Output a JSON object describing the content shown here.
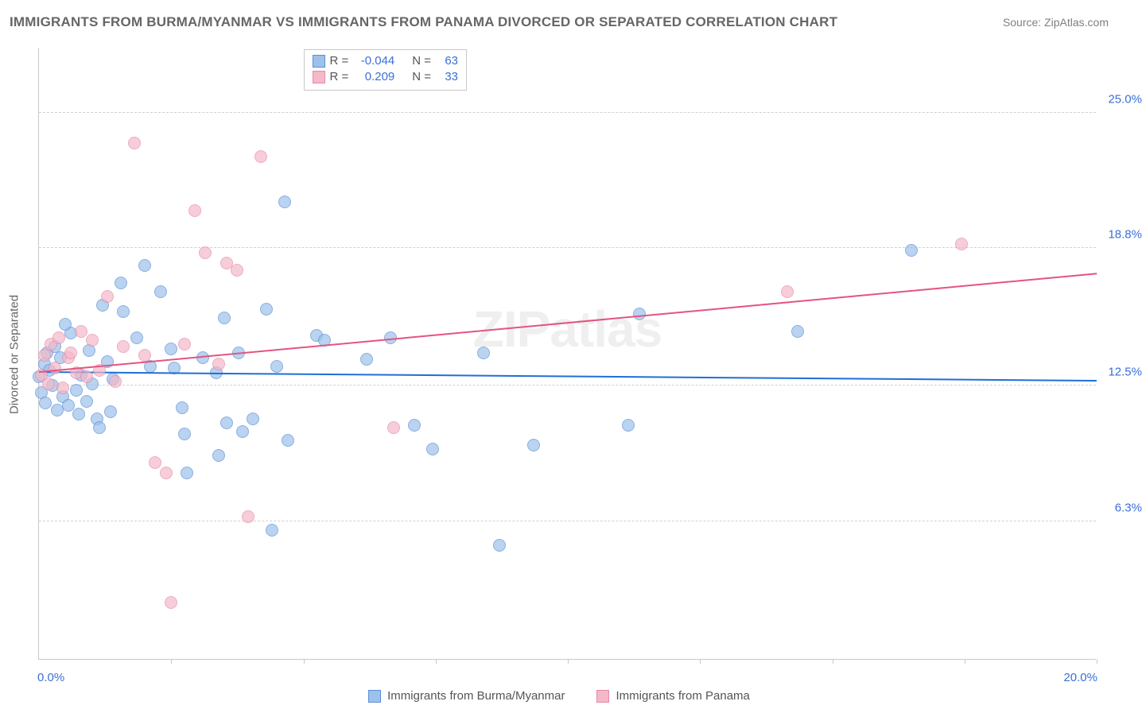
{
  "title": "IMMIGRANTS FROM BURMA/MYANMAR VS IMMIGRANTS FROM PANAMA DIVORCED OR SEPARATED CORRELATION CHART",
  "source_label": "Source: ",
  "source_name": "ZipAtlas.com",
  "y_axis_title": "Divorced or Separated",
  "watermark": "ZIPatlas",
  "chart": {
    "type": "scatter",
    "xlim": [
      0,
      20
    ],
    "ylim": [
      0,
      28
    ],
    "x_ticks": [
      2.5,
      5.0,
      7.5,
      10.0,
      12.5,
      15.0,
      17.5,
      20.0
    ],
    "y_gridlines": [
      6.3,
      12.5,
      18.8,
      25.0
    ],
    "y_tick_labels": [
      "6.3%",
      "12.5%",
      "18.8%",
      "25.0%"
    ],
    "x_origin_label": "0.0%",
    "x_max_label": "20.0%",
    "background_color": "#ffffff",
    "grid_color": "#d0d0d0",
    "axis_color": "#c8c8c8",
    "marker_radius": 8,
    "marker_fill_opacity": 0.35,
    "series": [
      {
        "key": "burma",
        "label": "Immigrants from Burma/Myanmar",
        "color_stroke": "#5a8fd6",
        "color_fill": "#9cc1eb",
        "trend_color": "#1f6fd6",
        "R": "-0.044",
        "N": "63",
        "trend": {
          "x0": 0,
          "y0": 13.1,
          "x1": 20,
          "y1": 12.7
        },
        "points": [
          [
            0.0,
            12.9
          ],
          [
            0.05,
            12.2
          ],
          [
            0.1,
            13.5
          ],
          [
            0.15,
            14.0
          ],
          [
            0.12,
            11.7
          ],
          [
            0.2,
            13.2
          ],
          [
            0.25,
            12.5
          ],
          [
            0.3,
            14.3
          ],
          [
            0.35,
            11.4
          ],
          [
            0.4,
            13.8
          ],
          [
            0.45,
            12.0
          ],
          [
            0.55,
            11.6
          ],
          [
            0.6,
            14.9
          ],
          [
            0.7,
            12.3
          ],
          [
            0.75,
            11.2
          ],
          [
            0.8,
            13.0
          ],
          [
            0.9,
            11.8
          ],
          [
            0.95,
            14.1
          ],
          [
            1.0,
            12.6
          ],
          [
            1.1,
            11.0
          ],
          [
            1.15,
            10.6
          ],
          [
            1.2,
            16.2
          ],
          [
            1.3,
            13.6
          ],
          [
            1.35,
            11.3
          ],
          [
            1.4,
            12.8
          ],
          [
            1.55,
            17.2
          ],
          [
            1.6,
            15.9
          ],
          [
            1.85,
            14.7
          ],
          [
            2.0,
            18.0
          ],
          [
            2.1,
            13.4
          ],
          [
            2.3,
            16.8
          ],
          [
            2.5,
            14.2
          ],
          [
            2.55,
            13.3
          ],
          [
            2.7,
            11.5
          ],
          [
            2.75,
            10.3
          ],
          [
            2.8,
            8.5
          ],
          [
            3.1,
            13.8
          ],
          [
            3.35,
            13.1
          ],
          [
            3.4,
            9.3
          ],
          [
            3.5,
            15.6
          ],
          [
            3.55,
            10.8
          ],
          [
            3.78,
            14.0
          ],
          [
            3.85,
            10.4
          ],
          [
            4.05,
            11.0
          ],
          [
            4.3,
            16.0
          ],
          [
            4.4,
            5.9
          ],
          [
            4.5,
            13.4
          ],
          [
            4.65,
            20.9
          ],
          [
            4.7,
            10.0
          ],
          [
            5.25,
            14.8
          ],
          [
            5.4,
            14.6
          ],
          [
            6.2,
            13.7
          ],
          [
            6.65,
            14.7
          ],
          [
            7.1,
            10.7
          ],
          [
            7.45,
            9.6
          ],
          [
            8.4,
            14.0
          ],
          [
            8.7,
            5.2
          ],
          [
            9.35,
            9.8
          ],
          [
            11.15,
            10.7
          ],
          [
            11.35,
            15.8
          ],
          [
            14.35,
            15.0
          ],
          [
            16.5,
            18.7
          ],
          [
            0.5,
            15.3
          ]
        ]
      },
      {
        "key": "panama",
        "label": "Immigrants from Panama",
        "color_stroke": "#e68aa6",
        "color_fill": "#f4b8c9",
        "trend_color": "#e4547e",
        "R": "0.209",
        "N": "33",
        "trend": {
          "x0": 0,
          "y0": 13.1,
          "x1": 20,
          "y1": 17.6
        },
        "points": [
          [
            0.05,
            13.0
          ],
          [
            0.1,
            13.9
          ],
          [
            0.18,
            12.6
          ],
          [
            0.22,
            14.4
          ],
          [
            0.3,
            13.3
          ],
          [
            0.38,
            14.7
          ],
          [
            0.45,
            12.4
          ],
          [
            0.55,
            13.8
          ],
          [
            0.6,
            14.0
          ],
          [
            0.7,
            13.1
          ],
          [
            0.8,
            15.0
          ],
          [
            0.9,
            12.9
          ],
          [
            1.0,
            14.6
          ],
          [
            1.15,
            13.2
          ],
          [
            1.3,
            16.6
          ],
          [
            1.45,
            12.7
          ],
          [
            1.6,
            14.3
          ],
          [
            1.8,
            23.6
          ],
          [
            2.0,
            13.9
          ],
          [
            2.2,
            9.0
          ],
          [
            2.4,
            8.5
          ],
          [
            2.5,
            2.6
          ],
          [
            2.75,
            14.4
          ],
          [
            2.95,
            20.5
          ],
          [
            3.15,
            18.6
          ],
          [
            3.4,
            13.5
          ],
          [
            3.55,
            18.1
          ],
          [
            3.75,
            17.8
          ],
          [
            3.95,
            6.5
          ],
          [
            4.2,
            23.0
          ],
          [
            6.7,
            10.6
          ],
          [
            14.15,
            16.8
          ],
          [
            17.45,
            19.0
          ]
        ]
      }
    ]
  },
  "legend": {
    "R_label": "R =",
    "N_label": "N ="
  }
}
